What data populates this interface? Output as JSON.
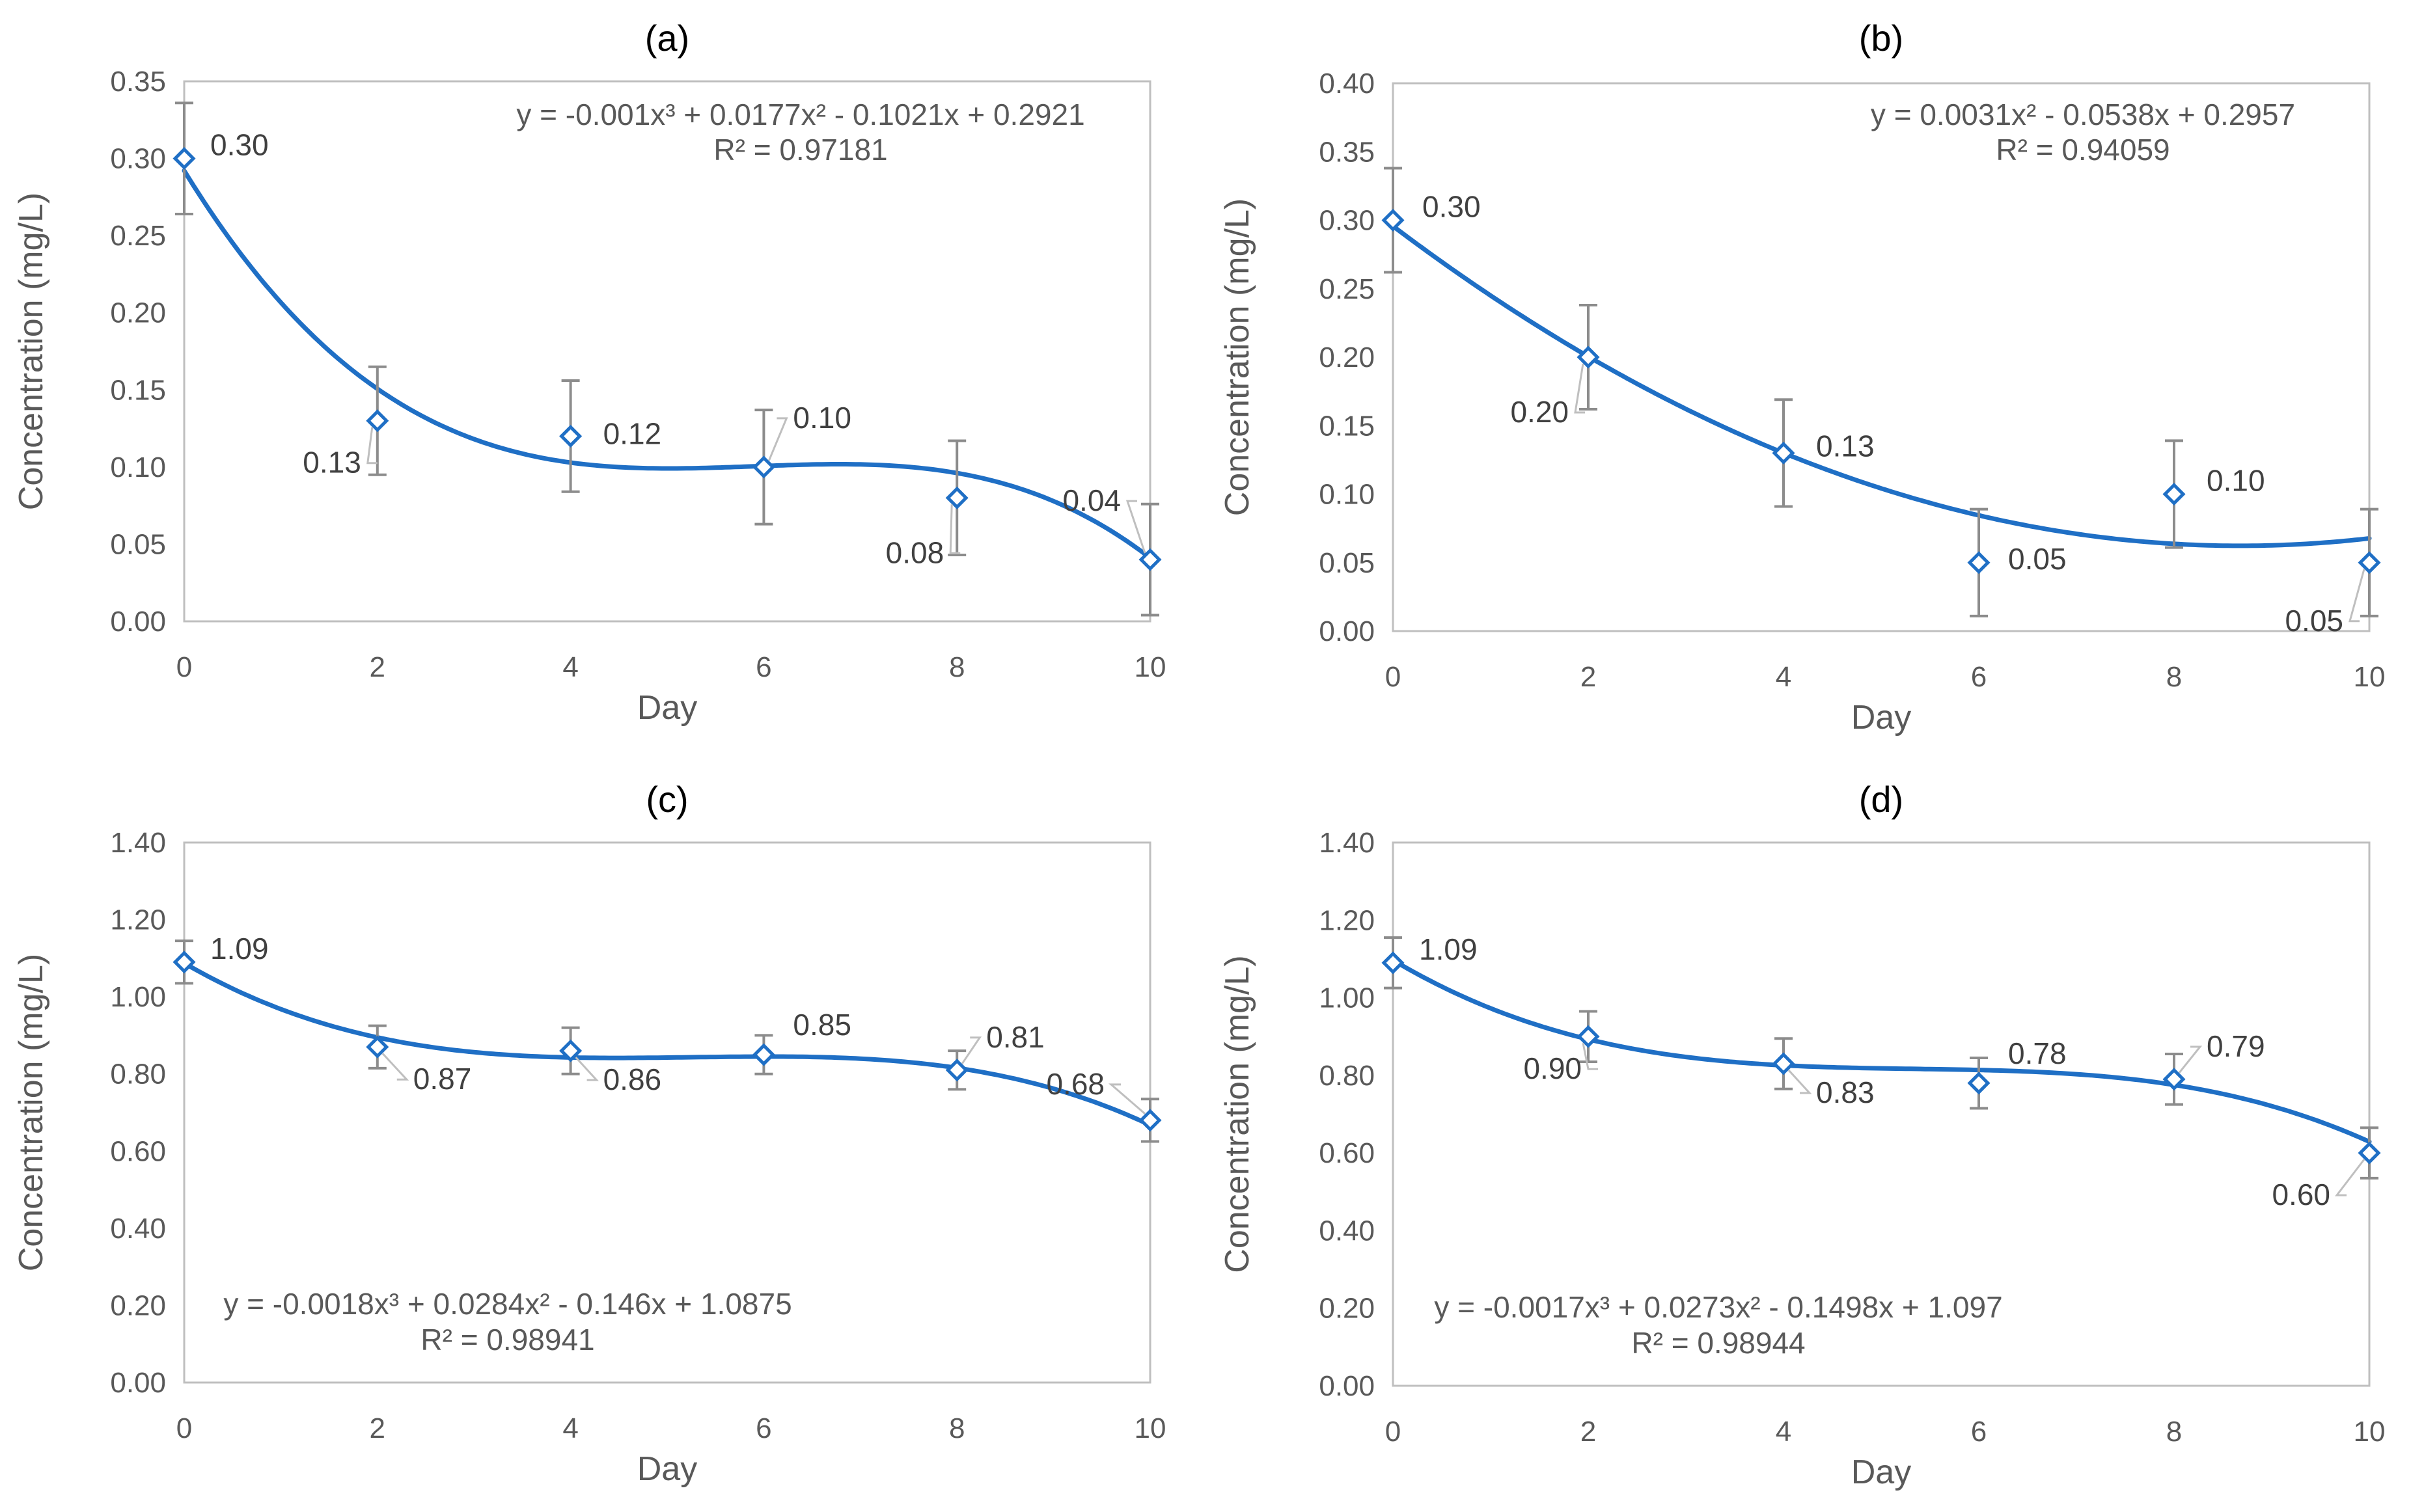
{
  "chart_data": [
    {
      "type": "scatter",
      "title": "(a)",
      "xlabel": "Day",
      "ylabel": "Concentration (mg/L)",
      "xlim": [
        0,
        10
      ],
      "ylim": [
        0,
        0.35
      ],
      "xticks": [
        0,
        2,
        4,
        6,
        8,
        10
      ],
      "yticks": [
        "0.00",
        "0.05",
        "0.10",
        "0.15",
        "0.20",
        "0.25",
        "0.30",
        "0.35"
      ],
      "x": [
        0,
        2,
        4,
        6,
        8,
        10
      ],
      "y": [
        0.3,
        0.13,
        0.12,
        0.1,
        0.08,
        0.04
      ],
      "errors": [
        0.036,
        0.035,
        0.036,
        0.037,
        0.037,
        0.036
      ],
      "data_labels": [
        "0.30",
        "0.13",
        "0.12",
        "0.10",
        "0.08",
        "0.04"
      ],
      "trendline": {
        "coefficients": [
          -0.001,
          0.0177,
          -0.1021,
          0.2921
        ],
        "equation": "y = -0.001x³ + 0.0177x² - 0.1021x + 0.2921",
        "r2": "R² = 0.97181"
      },
      "equation_position": "top-right"
    },
    {
      "type": "scatter",
      "title": "(b)",
      "xlabel": "Day",
      "ylabel": "Concentration (mg/L)",
      "xlim": [
        0,
        10
      ],
      "ylim": [
        0,
        0.4
      ],
      "xticks": [
        0,
        2,
        4,
        6,
        8,
        10
      ],
      "yticks": [
        "0.00",
        "0.05",
        "0.10",
        "0.15",
        "0.20",
        "0.25",
        "0.30",
        "0.35",
        "0.40"
      ],
      "x": [
        0,
        2,
        4,
        6,
        8,
        10
      ],
      "y": [
        0.3,
        0.2,
        0.13,
        0.05,
        0.1,
        0.05
      ],
      "errors": [
        0.038,
        0.038,
        0.039,
        0.039,
        0.039,
        0.039
      ],
      "data_labels": [
        "0.30",
        "0.20",
        "0.13",
        "0.05",
        "0.10",
        "0.05"
      ],
      "trendline": {
        "coefficients": [
          0,
          0.0031,
          -0.0538,
          0.2957
        ],
        "equation": "y = 0.0031x² - 0.0538x + 0.2957",
        "r2": "R² = 0.94059"
      },
      "equation_position": "top-right"
    },
    {
      "type": "scatter",
      "title": "(c)",
      "xlabel": "Day",
      "ylabel": "Concentration (mg/L)",
      "xlim": [
        0,
        10
      ],
      "ylim": [
        0,
        1.4
      ],
      "xticks": [
        0,
        2,
        4,
        6,
        8,
        10
      ],
      "yticks": [
        "0.00",
        "0.20",
        "0.40",
        "0.60",
        "0.80",
        "1.00",
        "1.20",
        "1.40"
      ],
      "x": [
        0,
        2,
        4,
        6,
        8,
        10
      ],
      "y": [
        1.09,
        0.87,
        0.86,
        0.85,
        0.81,
        0.68
      ],
      "errors": [
        0.055,
        0.055,
        0.06,
        0.05,
        0.05,
        0.055
      ],
      "data_labels": [
        "1.09",
        "0.87",
        "0.86",
        "0.85",
        "0.81",
        "0.68"
      ],
      "trendline": {
        "coefficients": [
          -0.0018,
          0.0284,
          -0.146,
          1.0875
        ],
        "equation": "y = -0.0018x³ + 0.0284x² - 0.146x + 1.0875",
        "r2": "R² = 0.98941"
      },
      "equation_position": "bottom-left"
    },
    {
      "type": "scatter",
      "title": "(d)",
      "xlabel": "Day",
      "ylabel": "Concentration (mg/L)",
      "xlim": [
        0,
        10
      ],
      "ylim": [
        0,
        1.4
      ],
      "xticks": [
        0,
        2,
        4,
        6,
        8,
        10
      ],
      "yticks": [
        "0.00",
        "0.20",
        "0.40",
        "0.60",
        "0.80",
        "1.00",
        "1.20",
        "1.40"
      ],
      "x": [
        0,
        2,
        4,
        6,
        8,
        10
      ],
      "y": [
        1.09,
        0.9,
        0.83,
        0.78,
        0.79,
        0.6
      ],
      "errors": [
        0.065,
        0.065,
        0.065,
        0.065,
        0.065,
        0.065
      ],
      "data_labels": [
        "1.09",
        "0.90",
        "0.83",
        "0.78",
        "0.79",
        "0.60"
      ],
      "trendline": {
        "coefficients": [
          -0.0017,
          0.0273,
          -0.1498,
          1.097
        ],
        "equation": "y = -0.0017x³ + 0.0273x² - 0.1498x + 1.097",
        "r2": "R² = 0.98944"
      },
      "equation_position": "bottom-left"
    }
  ],
  "colors": {
    "series": "#1f6fc5",
    "trend": "#1f6fc5",
    "error_bar": "#8c8c8c",
    "axis": "#bfbfbf",
    "label_leader": "#bfbfbf",
    "text": "#595959"
  }
}
